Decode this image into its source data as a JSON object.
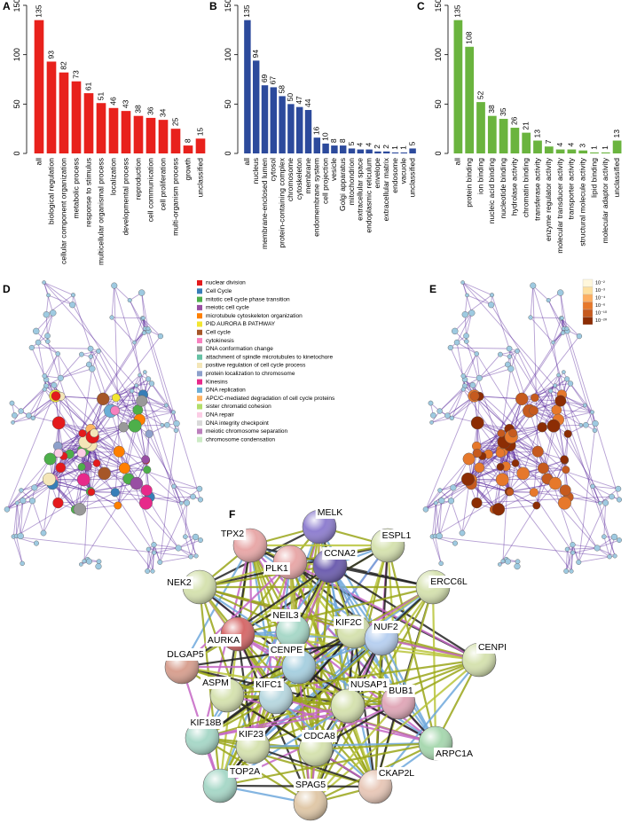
{
  "chart_data": [
    {
      "type": "bar",
      "label": "A",
      "color": "#e8211c",
      "categories": [
        "all",
        "biological regulation",
        "cellular component organization",
        "metabolic process",
        "response to stimulus",
        "multicellular organismal process",
        "localization",
        "developmental process",
        "reproduction",
        "cell communication",
        "cell proliferation",
        "multi-organism process",
        "growth",
        "unclassified"
      ],
      "values": [
        135,
        93,
        82,
        73,
        61,
        51,
        46,
        43,
        38,
        36,
        34,
        25,
        8,
        15
      ],
      "ylim": [
        0,
        150
      ],
      "yticks": [
        0,
        50,
        100,
        150
      ]
    },
    {
      "type": "bar",
      "label": "B",
      "color": "#2c4a9c",
      "categories": [
        "all",
        "nucleus",
        "membrane-enclosed lumen",
        "cytosol",
        "protein-containing complex",
        "chromosome",
        "cytoskeleton",
        "membrane",
        "endomembrane system",
        "cell projection",
        "vesicle",
        "Golgi apparatus",
        "mitochondrion",
        "extracellular space",
        "endoplasmic reticulum",
        "envelope",
        "extracellular matrix",
        "endosome",
        "vacuole",
        "unclassified"
      ],
      "values": [
        135,
        94,
        69,
        67,
        58,
        50,
        47,
        44,
        16,
        10,
        8,
        8,
        5,
        4,
        4,
        2,
        2,
        1,
        1,
        5
      ],
      "ylim": [
        0,
        150
      ],
      "yticks": [
        0,
        50,
        100,
        150
      ]
    },
    {
      "type": "bar",
      "label": "C",
      "color": "#6ab43e",
      "categories": [
        "all",
        "protein binding",
        "ion binding",
        "nucleic acid binding",
        "nucleotide binding",
        "hydrolase activity",
        "chromatin binding",
        "transferase activity",
        "enzyme regulator activity",
        "molecular transducer activity",
        "transporter activity",
        "structural molecule activity",
        "lipid binding",
        "molecular adaptor activity",
        "unclassified"
      ],
      "values": [
        135,
        108,
        52,
        38,
        35,
        26,
        21,
        13,
        7,
        4,
        4,
        3,
        1,
        1,
        13
      ],
      "ylim": [
        0,
        150
      ],
      "yticks": [
        0,
        50,
        100,
        150
      ]
    }
  ],
  "network_d": {
    "label": "D",
    "legend": [
      {
        "label": "nuclear division",
        "color": "#e41a1c"
      },
      {
        "label": "Cell Cycle",
        "color": "#377eb8"
      },
      {
        "label": "mitotic cell cycle phase transition",
        "color": "#4daf4a"
      },
      {
        "label": "meiotic cell cycle",
        "color": "#984ea3"
      },
      {
        "label": "microtubule cytoskeleton organization",
        "color": "#ff7f00"
      },
      {
        "label": "PID AURORA B PATHWAY",
        "color": "#f2e631"
      },
      {
        "label": "Cell cycle",
        "color": "#a65628"
      },
      {
        "label": "cytokinesis",
        "color": "#f781bf"
      },
      {
        "label": "DNA conformation change",
        "color": "#999999"
      },
      {
        "label": "attachment of spindle microtubules to kinetochore",
        "color": "#66c2a5"
      },
      {
        "label": "positive regulation of cell cycle process",
        "color": "#f4e6b8"
      },
      {
        "label": "protein localization to chromosome",
        "color": "#8da0cb"
      },
      {
        "label": "Kinesins",
        "color": "#e7298a"
      },
      {
        "label": "DNA replication",
        "color": "#6baed6"
      },
      {
        "label": "APC/C-mediated degradation of cell cycle proteins",
        "color": "#fdb462"
      },
      {
        "label": "sister chromatid cohesion",
        "color": "#b3de69"
      },
      {
        "label": "DNA repair",
        "color": "#fccde5"
      },
      {
        "label": "DNA integrity checkpoint",
        "color": "#d9d9d9"
      },
      {
        "label": "meiotic chromosome separation",
        "color": "#bc80bd"
      },
      {
        "label": "chromosome condensation",
        "color": "#ccebc5"
      }
    ]
  },
  "network_e": {
    "label": "E",
    "legend": [
      {
        "label": "10⁻²",
        "color": "#fff7dc"
      },
      {
        "label": "10⁻³",
        "color": "#fde0a0"
      },
      {
        "label": "10⁻⁴",
        "color": "#fdae61"
      },
      {
        "label": "10⁻⁶",
        "color": "#e6782b"
      },
      {
        "label": "10⁻¹⁰",
        "color": "#c65a1e"
      },
      {
        "label": "10⁻²⁰",
        "color": "#8c2d04"
      }
    ]
  },
  "network_f": {
    "label": "F",
    "nodes": [
      "MELK",
      "TPX2",
      "ESPL1",
      "NEK2",
      "PLK1",
      "CCNA2",
      "ERCC6L",
      "AURKA",
      "NEIL3",
      "KIF2C",
      "NUF2",
      "DLGAP5",
      "CENPE",
      "CENPI",
      "ASPM",
      "KIFC1",
      "NUSAP1",
      "BUB1",
      "KIF18B",
      "KIF23",
      "CDCA8",
      "ARPC1A",
      "TOP2A",
      "SPAG5",
      "CKAP2L"
    ]
  }
}
